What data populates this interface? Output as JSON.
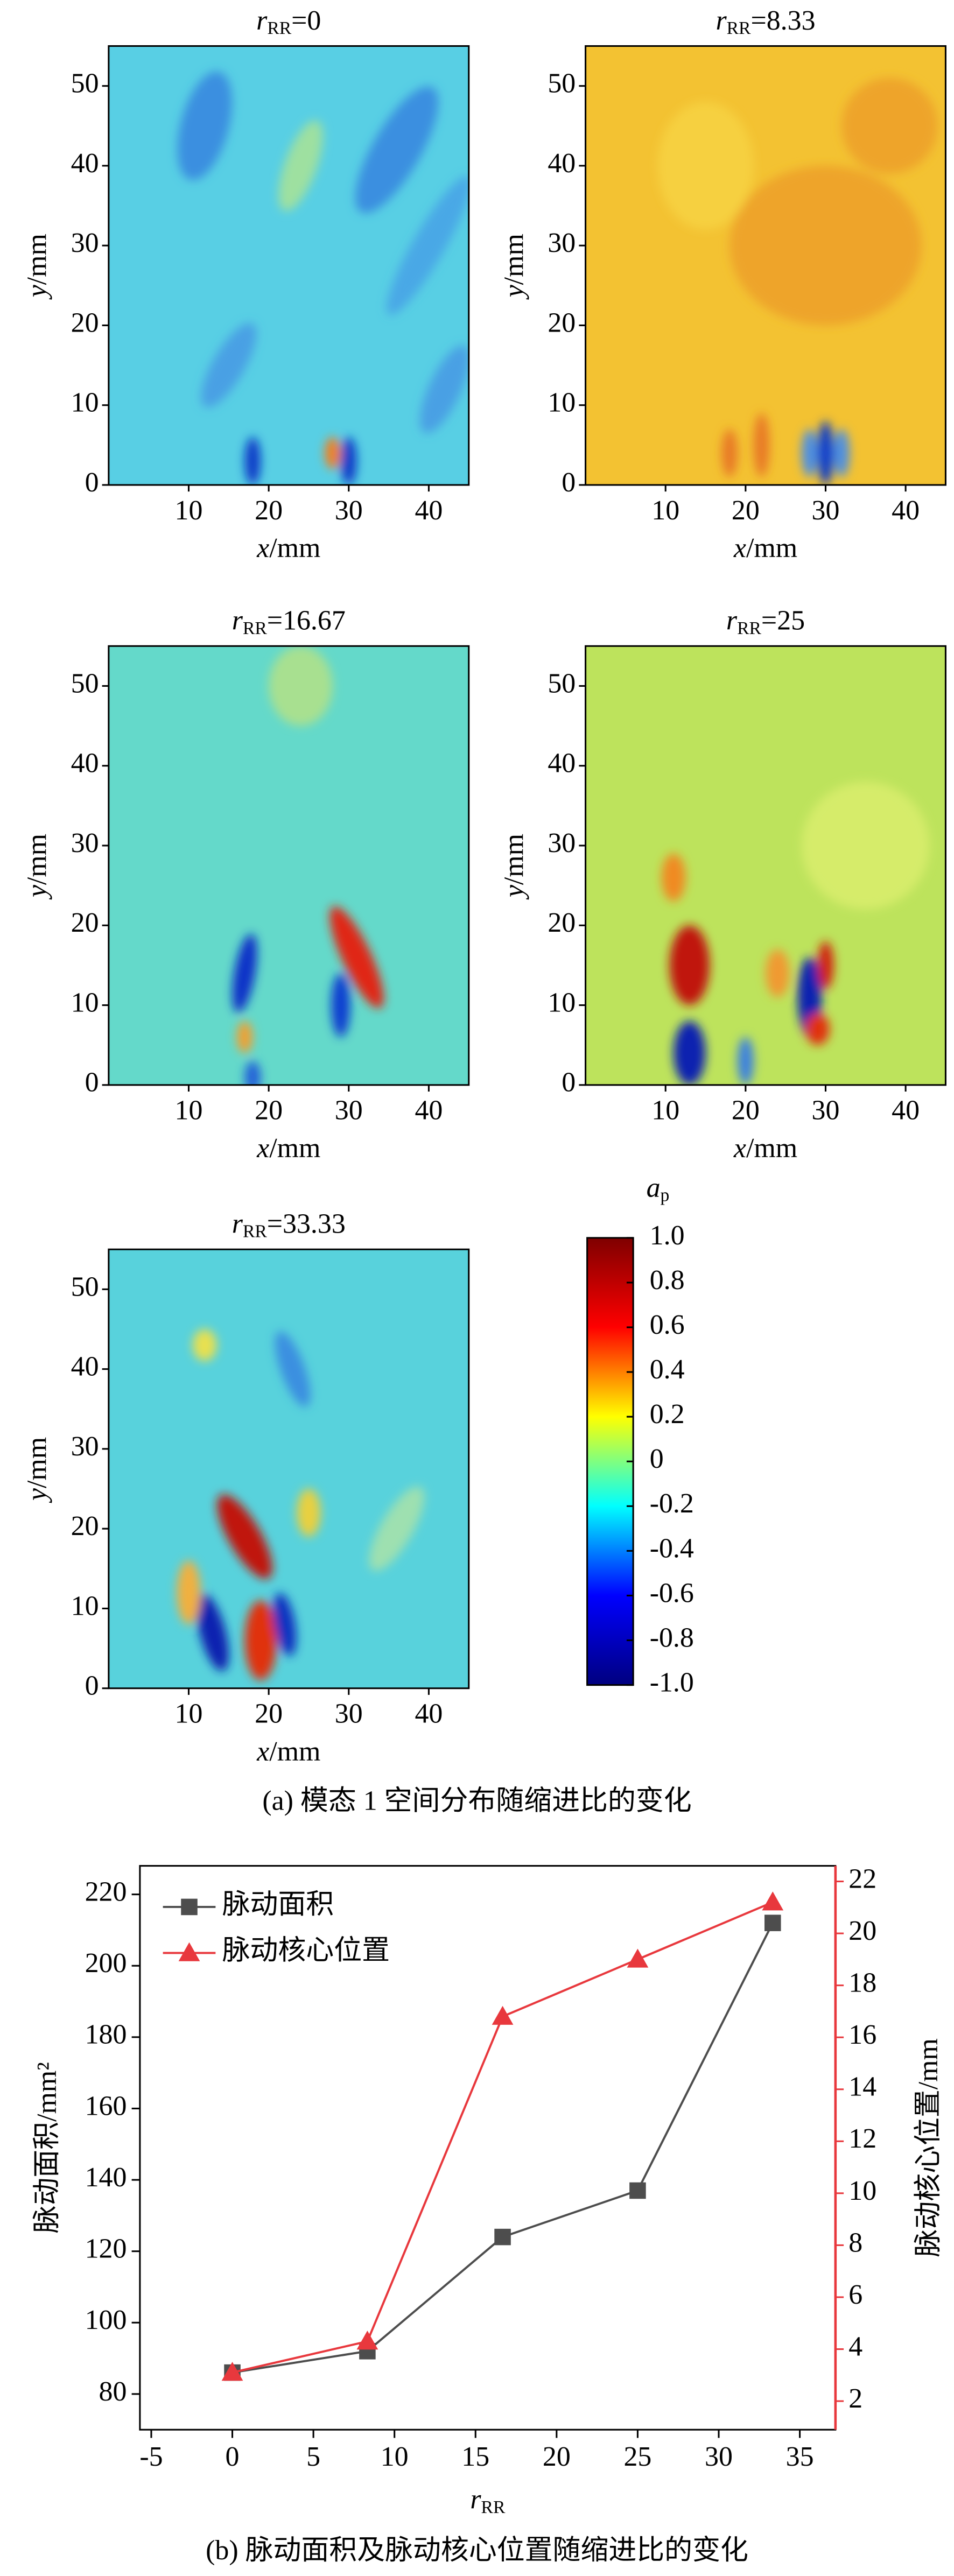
{
  "captions": [
    "(a) 模态 1 空间分布随缩进比的变化",
    "(b) 脉动面积及脉动核心位置随缩进比的变化"
  ],
  "chart_data": [
    {
      "type": "heatmap",
      "title_symbol": "r",
      "title_subscript": "RR",
      "title_value": "=0",
      "xlabel_symbol": "x",
      "xlabel_unit": "/mm",
      "ylabel_symbol": "y",
      "ylabel_unit": "/mm",
      "xlim": [
        0,
        45
      ],
      "ylim": [
        0,
        55
      ],
      "xticks": [
        10,
        20,
        30,
        40
      ],
      "yticks": [
        0,
        10,
        20,
        30,
        40,
        50
      ]
    },
    {
      "type": "heatmap",
      "title_symbol": "r",
      "title_subscript": "RR",
      "title_value": "=8.33",
      "xlabel_symbol": "x",
      "xlabel_unit": "/mm",
      "ylabel_symbol": "y",
      "ylabel_unit": "/mm",
      "xlim": [
        0,
        45
      ],
      "ylim": [
        0,
        55
      ],
      "xticks": [
        10,
        20,
        30,
        40
      ],
      "yticks": [
        0,
        10,
        20,
        30,
        40,
        50
      ]
    },
    {
      "type": "heatmap",
      "title_symbol": "r",
      "title_subscript": "RR",
      "title_value": "=16.67",
      "xlabel_symbol": "x",
      "xlabel_unit": "/mm",
      "ylabel_symbol": "y",
      "ylabel_unit": "/mm",
      "xlim": [
        0,
        45
      ],
      "ylim": [
        0,
        55
      ],
      "xticks": [
        10,
        20,
        30,
        40
      ],
      "yticks": [
        0,
        10,
        20,
        30,
        40,
        50
      ]
    },
    {
      "type": "heatmap",
      "title_symbol": "r",
      "title_subscript": "RR",
      "title_value": "=25",
      "xlabel_symbol": "x",
      "xlabel_unit": "/mm",
      "ylabel_symbol": "y",
      "ylabel_unit": "/mm",
      "xlim": [
        0,
        45
      ],
      "ylim": [
        0,
        55
      ],
      "xticks": [
        10,
        20,
        30,
        40
      ],
      "yticks": [
        0,
        10,
        20,
        30,
        40,
        50
      ]
    },
    {
      "type": "heatmap",
      "title_symbol": "r",
      "title_subscript": "RR",
      "title_value": "=33.33",
      "xlabel_symbol": "x",
      "xlabel_unit": "/mm",
      "ylabel_symbol": "y",
      "ylabel_unit": "/mm",
      "xlim": [
        0,
        45
      ],
      "ylim": [
        0,
        55
      ],
      "xticks": [
        10,
        20,
        30,
        40
      ],
      "yticks": [
        0,
        10,
        20,
        30,
        40,
        50
      ]
    },
    {
      "type": "colorbar",
      "label_symbol": "a",
      "label_subscript": "p",
      "ylim": [
        -1,
        1
      ],
      "yticks": [
        {
          "value": 1,
          "label": "1.0"
        },
        0.8,
        0.6,
        0.4,
        0.2,
        0,
        -0.2,
        -0.4,
        -0.6,
        -0.8,
        {
          "value": -1,
          "label": "-1.0"
        }
      ],
      "colormap": [
        "#00007f",
        "#0000ff",
        "#00ffff",
        "#ffff00",
        "#ff0000",
        "#7f0000"
      ]
    },
    {
      "type": "line",
      "xlabel_symbol": "r",
      "xlabel_subscript": "RR",
      "ylabel": "脉动面积/mm²",
      "y2label": "脉动核心位置/mm",
      "y2color": "#e8383d",
      "x": [
        0,
        8.33,
        16.67,
        25,
        33.33
      ],
      "xlim": [
        -5.7,
        37.2
      ],
      "xticks": [
        -5,
        0,
        5,
        10,
        15,
        20,
        25,
        30,
        35
      ],
      "ylim": [
        70,
        228
      ],
      "yticks": [
        80,
        100,
        120,
        140,
        160,
        180,
        200,
        220
      ],
      "y2lim": [
        0.9,
        22.6
      ],
      "y2ticks": [
        2,
        4,
        6,
        8,
        10,
        12,
        14,
        16,
        18,
        20,
        22
      ],
      "legend": "upper left",
      "series": [
        {
          "name": "脉动面积",
          "color": "#4d4d4d",
          "marker": "square",
          "values": [
            86,
            92,
            124,
            137,
            212
          ]
        },
        {
          "name": "脉动核心位置",
          "color": "#e8383d",
          "marker": "triangle",
          "axis": "y2",
          "values": [
            3.1,
            4.3,
            16.8,
            19.0,
            21.2
          ]
        }
      ]
    }
  ]
}
